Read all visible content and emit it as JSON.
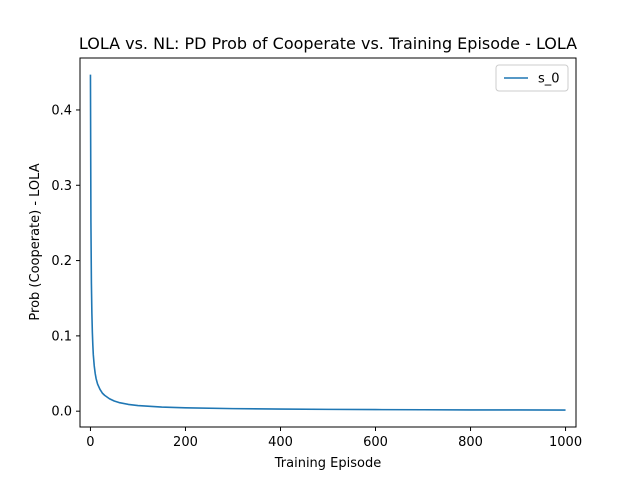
{
  "chart_data": {
    "type": "line",
    "title": "LOLA vs. NL: PD Prob of Cooperate vs. Training Episode - LOLA",
    "xlabel": "Training Episode",
    "ylabel": "Prob (Cooperate) - LOLA",
    "xlim": [
      -22,
      1022
    ],
    "ylim": [
      -0.021,
      0.469
    ],
    "xticks": [
      0,
      200,
      400,
      600,
      800,
      1000
    ],
    "xtick_labels": [
      "0",
      "200",
      "400",
      "600",
      "800",
      "1000"
    ],
    "yticks": [
      0.0,
      0.1,
      0.2,
      0.3,
      0.4
    ],
    "ytick_labels": [
      "0.0",
      "0.1",
      "0.2",
      "0.3",
      "0.4"
    ],
    "grid": false,
    "legend_position": "top-right",
    "series": [
      {
        "name": "s_0",
        "color": "#1f77b4",
        "x": [
          0,
          1,
          2,
          3,
          4,
          5,
          6,
          8,
          10,
          12,
          15,
          20,
          25,
          30,
          40,
          50,
          60,
          80,
          100,
          150,
          200,
          300,
          400,
          500,
          600,
          700,
          800,
          900,
          1000
        ],
        "y": [
          0.447,
          0.25,
          0.17,
          0.13,
          0.105,
          0.088,
          0.075,
          0.06,
          0.05,
          0.043,
          0.036,
          0.029,
          0.024,
          0.021,
          0.0165,
          0.0135,
          0.0115,
          0.009,
          0.0075,
          0.0055,
          0.0045,
          0.0034,
          0.0028,
          0.0024,
          0.0021,
          0.0019,
          0.0017,
          0.0016,
          0.0015
        ]
      }
    ]
  }
}
